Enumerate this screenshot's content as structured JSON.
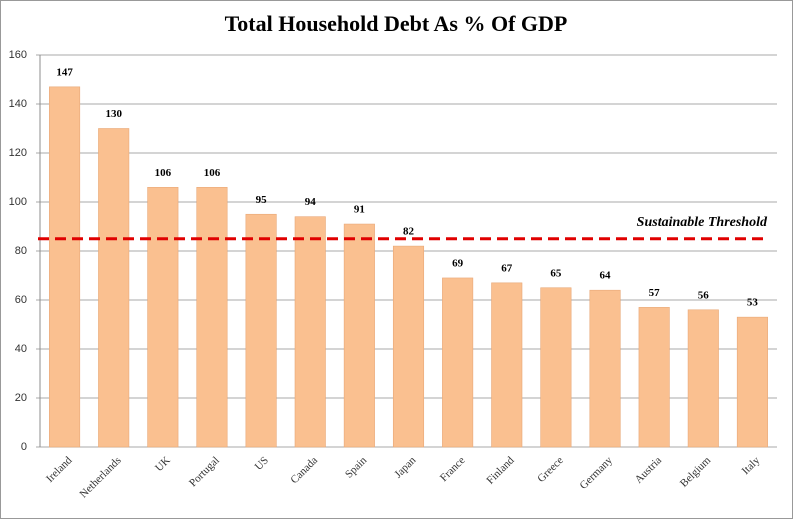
{
  "chart_data": {
    "type": "bar",
    "title": "Total Household Debt As % Of  GDP",
    "categories": [
      "Ireland",
      "Netherlands",
      "UK",
      "Portugal",
      "US",
      "Canada",
      "Spain",
      "Japan",
      "France",
      "Finland",
      "Greece",
      "Germany",
      "Austria",
      "Belgium",
      "Italy"
    ],
    "values": [
      147,
      130,
      106,
      106,
      95,
      94,
      91,
      82,
      69,
      67,
      65,
      64,
      57,
      56,
      53
    ],
    "color": "#fac090",
    "ylim": [
      0,
      160
    ],
    "yticks": [
      0,
      20,
      40,
      60,
      80,
      100,
      120,
      140,
      160
    ],
    "grid": true,
    "threshold": {
      "value": 85,
      "label": "Sustainable  Threshold",
      "color": "#e00000"
    }
  }
}
